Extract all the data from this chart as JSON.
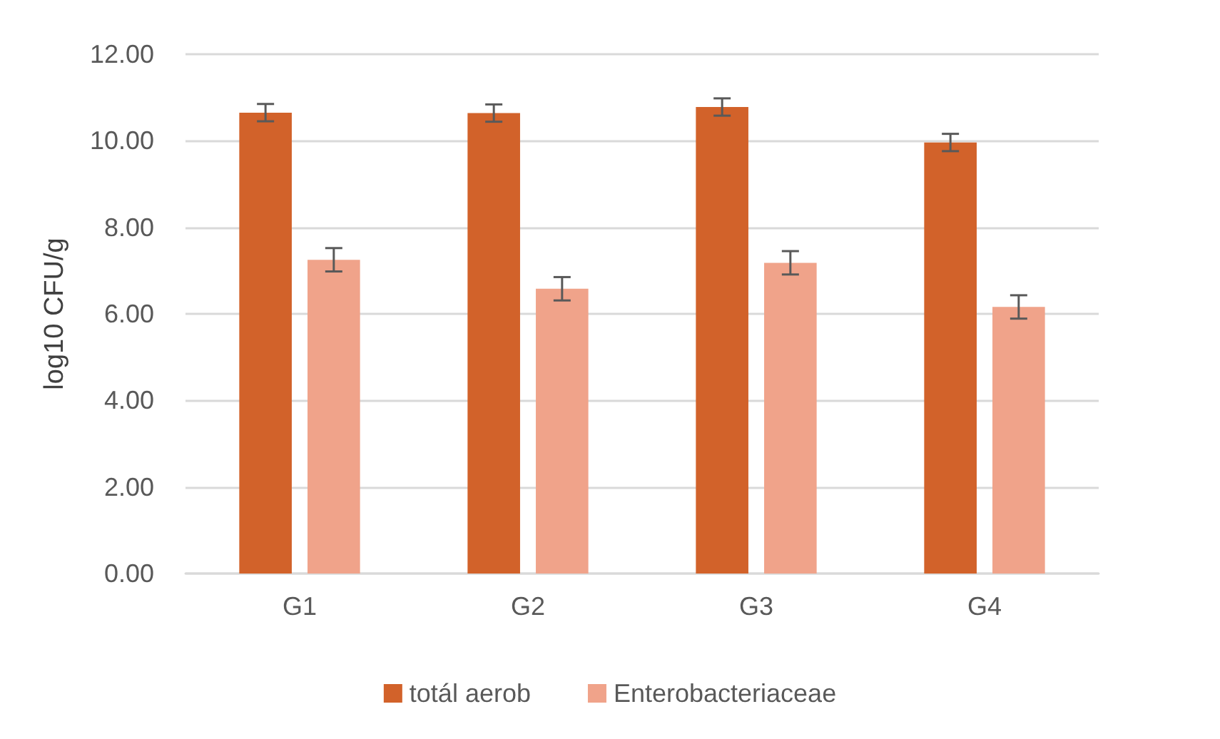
{
  "chart_data": {
    "type": "bar",
    "ylabel": "log10 CFU/g",
    "categories": [
      "G1",
      "G2",
      "G3",
      "G4"
    ],
    "series": [
      {
        "name": "totál aerob",
        "color": "#d2622a",
        "values": [
          10.65,
          10.64,
          10.78,
          9.96
        ],
        "errors": [
          0.2,
          0.2,
          0.2,
          0.2
        ]
      },
      {
        "name": "Enterobacteriaceae",
        "color": "#f0a38a",
        "values": [
          7.25,
          6.58,
          7.18,
          6.16
        ],
        "errors": [
          0.27,
          0.27,
          0.27,
          0.27
        ]
      }
    ],
    "ylim": [
      0,
      12
    ],
    "yticks": [
      {
        "value": 0,
        "label": "0.00"
      },
      {
        "value": 2,
        "label": "2.00"
      },
      {
        "value": 4,
        "label": "4.00"
      },
      {
        "value": 6,
        "label": "6.00"
      },
      {
        "value": 8,
        "label": "8.00"
      },
      {
        "value": 10,
        "label": "10.00"
      },
      {
        "value": 12,
        "label": "12.00"
      }
    ],
    "grid": "y",
    "legend": "bottom"
  }
}
